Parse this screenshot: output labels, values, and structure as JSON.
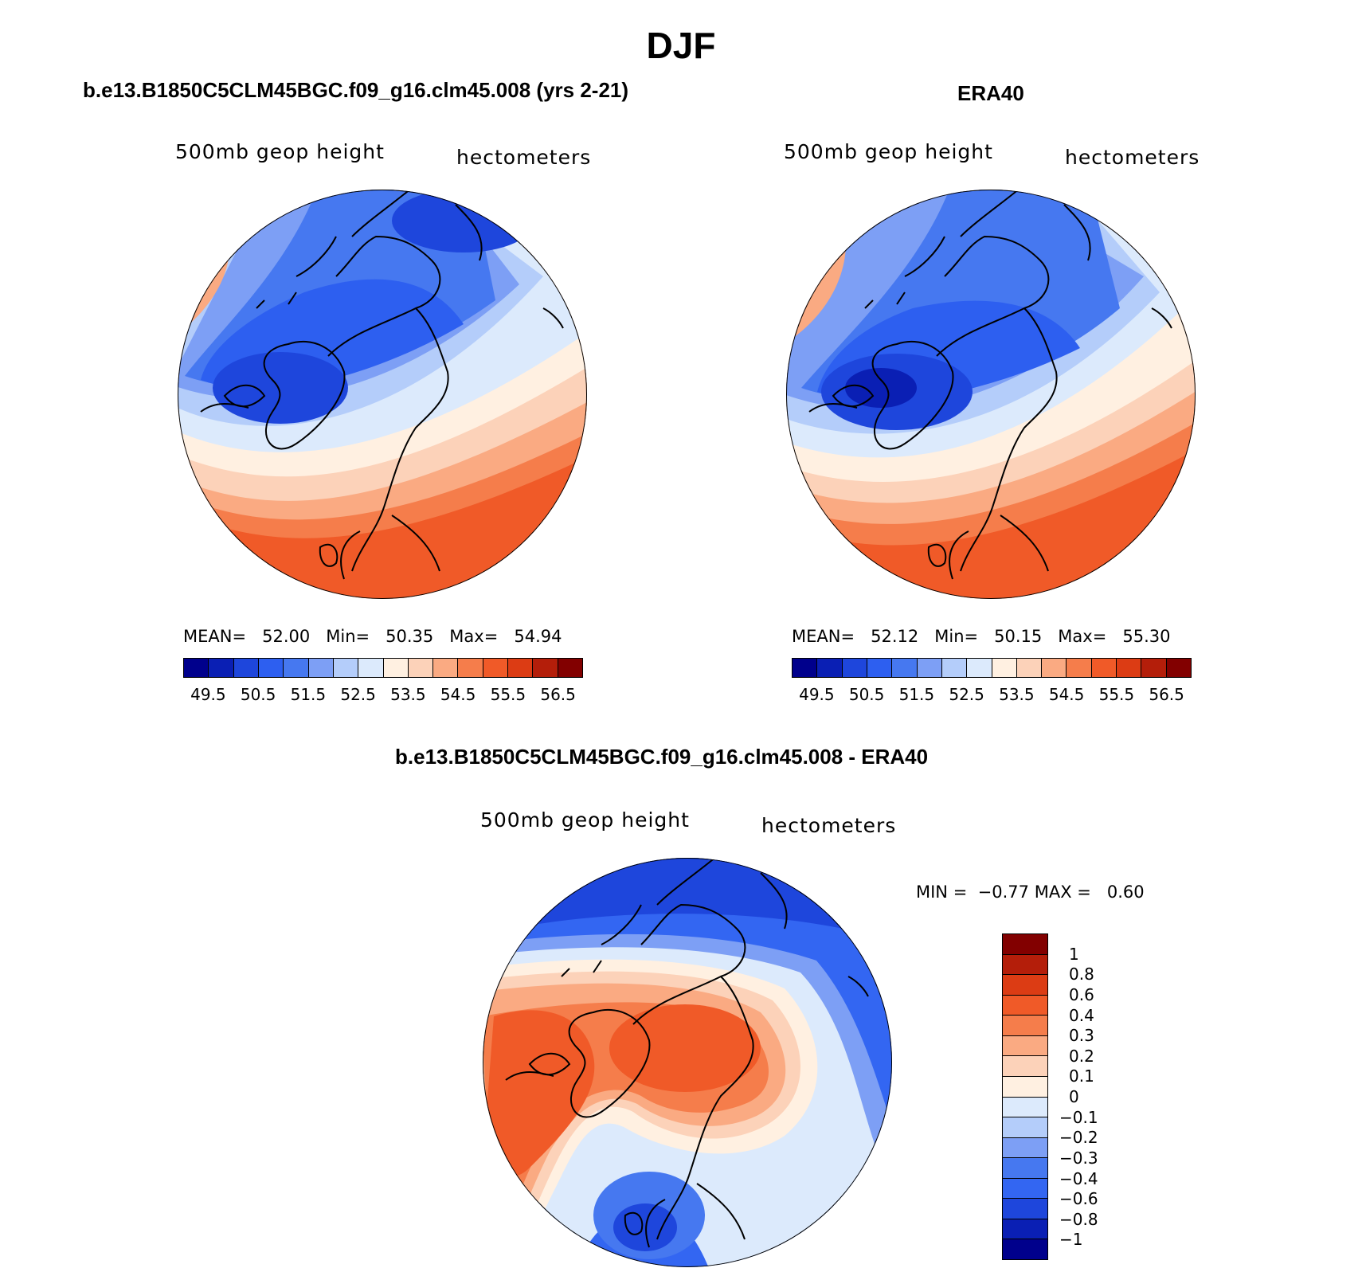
{
  "title": "DJF",
  "palette": [
    "#00008c",
    "#0a1fb4",
    "#1e46dc",
    "#2d5ff0",
    "#4678f0",
    "#7d9ff5",
    "#b4cdfa",
    "#dceafc",
    "#fff0e1",
    "#fcd2b9",
    "#faaa82",
    "#f57d4b",
    "#f05a28",
    "#dc3c14",
    "#b41e0a",
    "#820000"
  ],
  "diff_palette": [
    "#00008c",
    "#0a1fb4",
    "#1e46dc",
    "#3366f2",
    "#4678f0",
    "#7d9ff5",
    "#b4cdfa",
    "#dceafc",
    "#fff0e1",
    "#fcd2b9",
    "#faaa82",
    "#f57d4b",
    "#f05a28",
    "#dc3c14",
    "#b41e0a",
    "#820000"
  ],
  "coastline_color": "#000000",
  "panels": {
    "model": {
      "title": "b.e13.B1850C5CLM45BGC.f09_g16.clm45.008 (yrs 2-21)",
      "variable": "500mb geop height",
      "units": "hectometers",
      "stats": {
        "mean_label": "MEAN=",
        "mean": "52.00",
        "min_label": "Min=",
        "min": "50.35",
        "max_label": "Max=",
        "max": "54.94"
      },
      "ticks": [
        "49.5",
        "50.5",
        "51.5",
        "52.5",
        "53.5",
        "54.5",
        "55.5",
        "56.5"
      ]
    },
    "obs": {
      "title": "ERA40",
      "variable": "500mb geop height",
      "units": "hectometers",
      "stats": {
        "mean_label": "MEAN=",
        "mean": "52.12",
        "min_label": "Min=",
        "min": "50.15",
        "max_label": "Max=",
        "max": "55.30"
      },
      "ticks": [
        "49.5",
        "50.5",
        "51.5",
        "52.5",
        "53.5",
        "54.5",
        "55.5",
        "56.5"
      ]
    },
    "diff": {
      "title": "b.e13.B1850C5CLM45BGC.f09_g16.clm45.008 - ERA40",
      "variable": "500mb geop height",
      "units": "hectometers",
      "stats": {
        "min_label": "MIN =",
        "min": "−0.77",
        "max_label": "MAX =",
        "max": "0.60"
      },
      "ticks": [
        "1",
        "0.8",
        "0.6",
        "0.4",
        "0.3",
        "0.2",
        "0.1",
        "0",
        "−0.1",
        "−0.2",
        "−0.3",
        "−0.4",
        "−0.6",
        "−0.8",
        "−1"
      ]
    }
  },
  "chart_data": [
    {
      "type": "heatmap",
      "projection": "north polar stereographic",
      "title": "b.e13.B1850C5CLM45BGC.f09_g16.clm45.008 (yrs 2-21)",
      "variable": "500mb geop height",
      "units": "hectometers",
      "mean": 52.0,
      "min": 50.35,
      "max": 54.94,
      "contour_levels": [
        49.5,
        50,
        50.5,
        51,
        51.5,
        52,
        52.5,
        53,
        53.5,
        54,
        54.5,
        55,
        55.5,
        56,
        56.5
      ]
    },
    {
      "type": "heatmap",
      "projection": "north polar stereographic",
      "title": "ERA40",
      "variable": "500mb geop height",
      "units": "hectometers",
      "mean": 52.12,
      "min": 50.15,
      "max": 55.3,
      "contour_levels": [
        49.5,
        50,
        50.5,
        51,
        51.5,
        52,
        52.5,
        53,
        53.5,
        54,
        54.5,
        55,
        55.5,
        56,
        56.5
      ]
    },
    {
      "type": "heatmap",
      "projection": "north polar stereographic",
      "title": "b.e13.B1850C5CLM45BGC.f09_g16.clm45.008 - ERA40",
      "variable": "500mb geop height",
      "units": "hectometers",
      "min": -0.77,
      "max": 0.6,
      "contour_levels": [
        -1,
        -0.8,
        -0.6,
        -0.4,
        -0.3,
        -0.2,
        -0.1,
        0,
        0.1,
        0.2,
        0.3,
        0.4,
        0.6,
        0.8,
        1
      ]
    }
  ]
}
